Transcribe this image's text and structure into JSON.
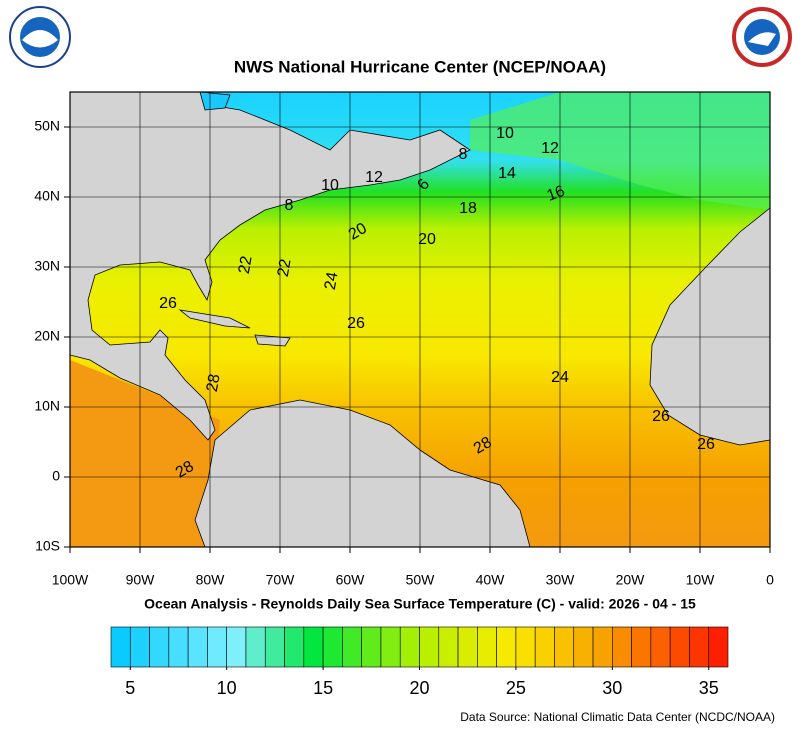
{
  "map": {
    "title": "NWS National Hurricane Center (NCEP/NOAA)",
    "subtitle": "Ocean Analysis - Reynolds Daily Sea Surface Temperature (C) - valid: 2026 - 04 - 15",
    "source": "Data Source: National Climatic Data Center (NCDC/NOAA)",
    "xlim": [
      -100,
      0
    ],
    "ylim": [
      -10,
      55
    ],
    "xticks": [
      {
        "value": -100,
        "label": "100W"
      },
      {
        "value": -90,
        "label": "90W"
      },
      {
        "value": -80,
        "label": "80W"
      },
      {
        "value": -70,
        "label": "70W"
      },
      {
        "value": -60,
        "label": "60W"
      },
      {
        "value": -50,
        "label": "50W"
      },
      {
        "value": -40,
        "label": "40W"
      },
      {
        "value": -30,
        "label": "30W"
      },
      {
        "value": -20,
        "label": "20W"
      },
      {
        "value": -10,
        "label": "10W"
      },
      0
    ],
    "yticks": [
      {
        "value": -10,
        "label": "10S"
      },
      0,
      {
        "value": 10,
        "label": "10N"
      },
      {
        "value": 20,
        "label": "20N"
      },
      {
        "value": 30,
        "label": "30N"
      },
      {
        "value": 40,
        "label": "40N"
      },
      {
        "value": 50,
        "label": "50N"
      }
    ],
    "contour_labels": [
      10,
      12,
      8,
      14,
      16,
      18,
      6,
      12,
      10,
      8,
      20,
      20,
      22,
      22,
      24,
      26,
      26,
      28,
      24,
      26,
      28,
      26,
      28
    ],
    "colorbar_lim": [
      4,
      36
    ],
    "colorbar_ticks": [
      5,
      10,
      15,
      20,
      25,
      30,
      35
    ]
  }
}
